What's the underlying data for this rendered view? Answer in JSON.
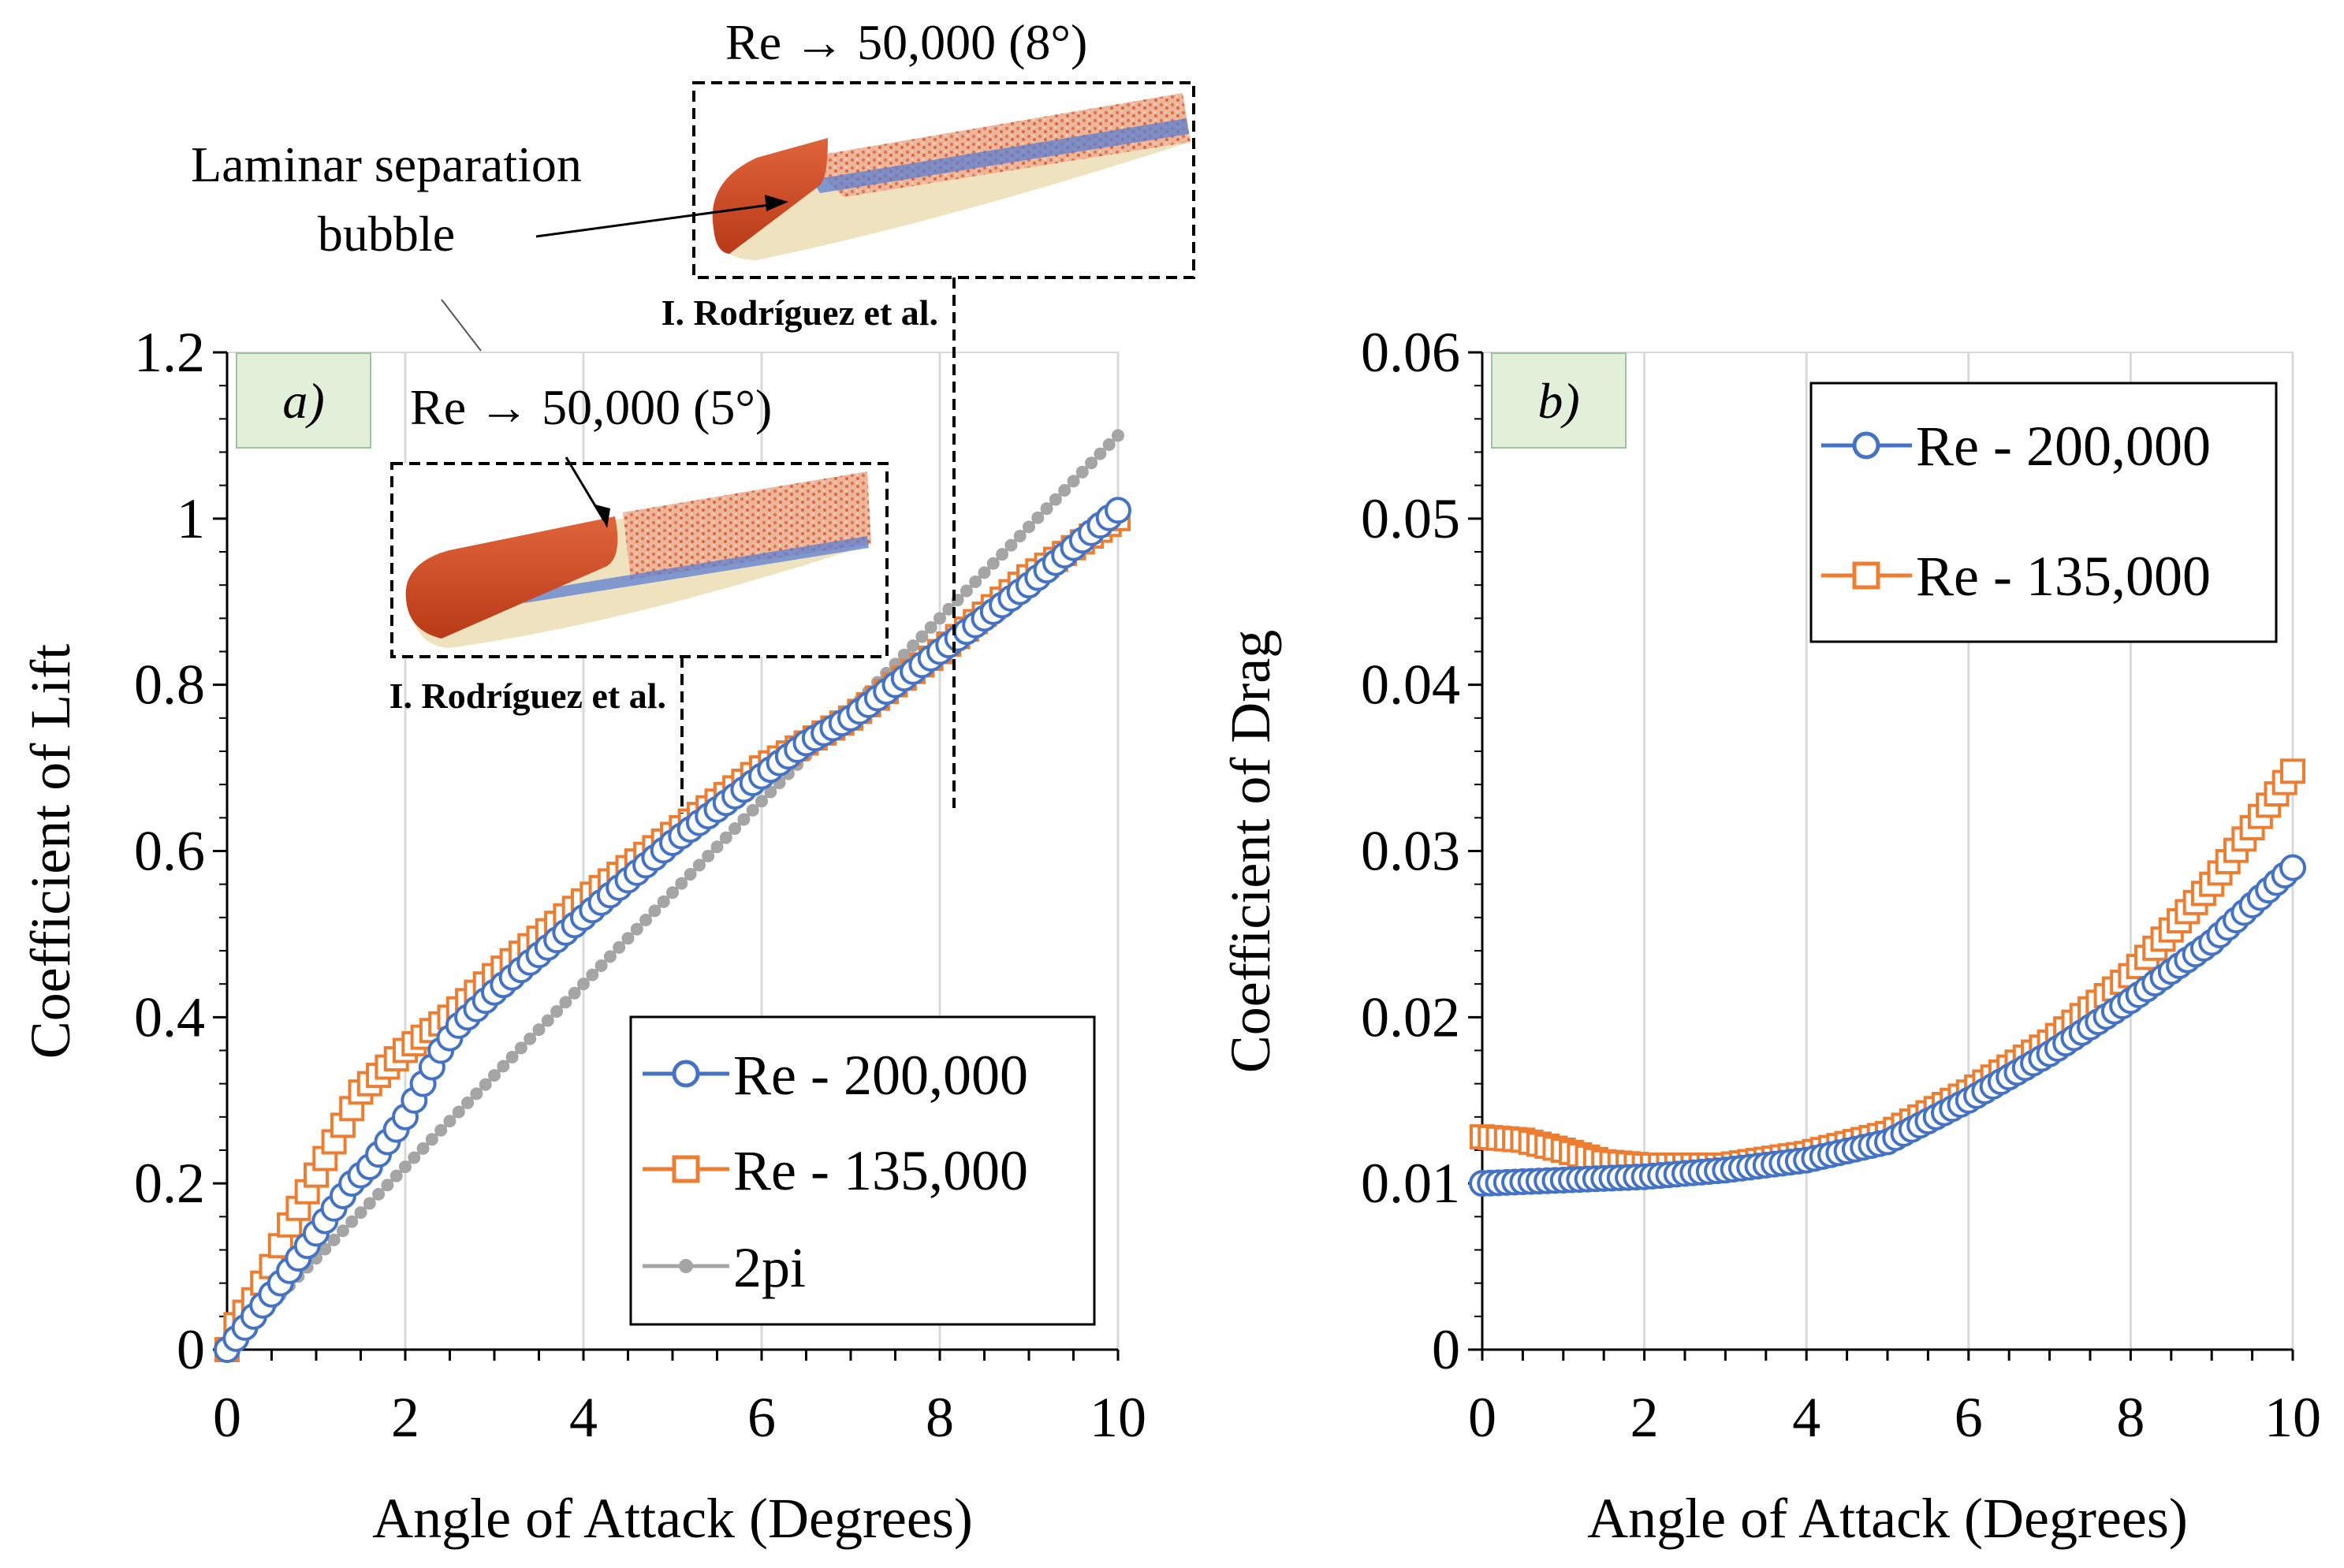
{
  "colors": {
    "blue": "#4472C4",
    "orange": "#ED7D31",
    "gray": "#A5A5A5",
    "panel_label_bg": "#E2F0D9",
    "grid": "#D9D9D9"
  },
  "annotations": {
    "top_title": "Re  → 50,000  (8°)",
    "mid_title": "Re  → 50,000  (5°)",
    "lsb_line1": "Laminar separation",
    "lsb_line2": "bubble",
    "source_top": "I. Rodríguez et al.",
    "source_mid": "I. Rodríguez et al."
  },
  "chart_data": [
    {
      "panel": "a)",
      "type": "scatter",
      "xlabel": "Angle of Attack (Degrees)",
      "ylabel": "Coefficient of Lift",
      "xlim": [
        0,
        10
      ],
      "ylim": [
        0,
        1.2
      ],
      "xticks": [
        "0",
        "2",
        "4",
        "6",
        "8",
        "10"
      ],
      "yticks": [
        "0",
        "0.2",
        "0.4",
        "0.6",
        "0.8",
        "1",
        "1.2"
      ],
      "grid": "vertical",
      "legend": {
        "position": "bottom-right",
        "entries": [
          "Re - 200,000",
          "Re - 135,000",
          "2pi"
        ]
      },
      "series": [
        {
          "name": "Re - 200,000",
          "marker": "circle",
          "color": "#4472C4",
          "x_range": [
            0,
            10
          ],
          "step": 0.1,
          "points": [
            [
              0,
              0
            ],
            [
              0.3,
              0.04
            ],
            [
              0.6,
              0.08
            ],
            [
              0.8,
              0.11
            ],
            [
              1.0,
              0.14
            ],
            [
              1.2,
              0.17
            ],
            [
              1.4,
              0.2
            ],
            [
              1.6,
              0.22
            ],
            [
              1.8,
              0.25
            ],
            [
              2.0,
              0.28
            ],
            [
              2.2,
              0.32
            ],
            [
              2.4,
              0.36
            ],
            [
              2.6,
              0.39
            ],
            [
              3,
              0.43
            ],
            [
              4,
              0.52
            ],
            [
              5,
              0.61
            ],
            [
              6,
              0.69
            ],
            [
              6.5,
              0.73
            ],
            [
              7,
              0.76
            ],
            [
              8,
              0.84
            ],
            [
              9,
              0.92
            ],
            [
              10,
              1.01
            ]
          ]
        },
        {
          "name": "Re - 135,000",
          "marker": "square",
          "color": "#ED7D31",
          "x_range": [
            0,
            10
          ],
          "step": 0.1,
          "points": [
            [
              0,
              0
            ],
            [
              0.1,
              0.03
            ],
            [
              0.3,
              0.06
            ],
            [
              0.5,
              0.1
            ],
            [
              0.7,
              0.15
            ],
            [
              0.9,
              0.19
            ],
            [
              1.1,
              0.23
            ],
            [
              1.3,
              0.27
            ],
            [
              1.5,
              0.31
            ],
            [
              1.8,
              0.34
            ],
            [
              2.0,
              0.36
            ],
            [
              2.5,
              0.4
            ],
            [
              3,
              0.45
            ],
            [
              4,
              0.54
            ],
            [
              5,
              0.62
            ],
            [
              6,
              0.7
            ],
            [
              7,
              0.76
            ],
            [
              8,
              0.84
            ],
            [
              9,
              0.93
            ],
            [
              10,
              1.0
            ]
          ]
        },
        {
          "name": "2pi",
          "marker": "dot-line",
          "color": "#A5A5A5",
          "x_range": [
            0,
            10
          ],
          "step": 0.1,
          "points": [
            [
              0,
              0
            ],
            [
              10,
              1.1
            ]
          ]
        }
      ]
    },
    {
      "panel": "b)",
      "type": "scatter",
      "xlabel": "Angle of Attack (Degrees)",
      "ylabel": "Coefficient of Drag",
      "xlim": [
        0,
        10
      ],
      "ylim": [
        0,
        0.06
      ],
      "xticks": [
        "0",
        "2",
        "4",
        "6",
        "8",
        "10"
      ],
      "yticks": [
        "0",
        "0.01",
        "0.02",
        "0.03",
        "0.04",
        "0.05",
        "0.06"
      ],
      "grid": "vertical",
      "legend": {
        "position": "top-left",
        "entries": [
          "Re - 200,000",
          "Re - 135,000"
        ]
      },
      "series": [
        {
          "name": "Re - 200,000",
          "marker": "circle",
          "color": "#4472C4",
          "x_range": [
            0,
            10
          ],
          "step": 0.1,
          "points": [
            [
              0,
              0.01
            ],
            [
              1,
              0.0102
            ],
            [
              2,
              0.0104
            ],
            [
              3,
              0.0108
            ],
            [
              4,
              0.0114
            ],
            [
              5,
              0.0125
            ],
            [
              6,
              0.015
            ],
            [
              7,
              0.0178
            ],
            [
              8,
              0.021
            ],
            [
              9,
              0.0245
            ],
            [
              10,
              0.029
            ]
          ]
        },
        {
          "name": "Re - 135,000",
          "marker": "square",
          "color": "#ED7D31",
          "x_range": [
            0,
            10
          ],
          "step": 0.1,
          "points": [
            [
              0,
              0.0128
            ],
            [
              0.5,
              0.0126
            ],
            [
              1,
              0.012
            ],
            [
              1.5,
              0.0113
            ],
            [
              2,
              0.0111
            ],
            [
              3,
              0.0111
            ],
            [
              4,
              0.0118
            ],
            [
              5,
              0.013
            ],
            [
              6,
              0.0155
            ],
            [
              7,
              0.0185
            ],
            [
              8,
              0.0225
            ],
            [
              9,
              0.028
            ],
            [
              10,
              0.0348
            ]
          ]
        }
      ]
    }
  ]
}
